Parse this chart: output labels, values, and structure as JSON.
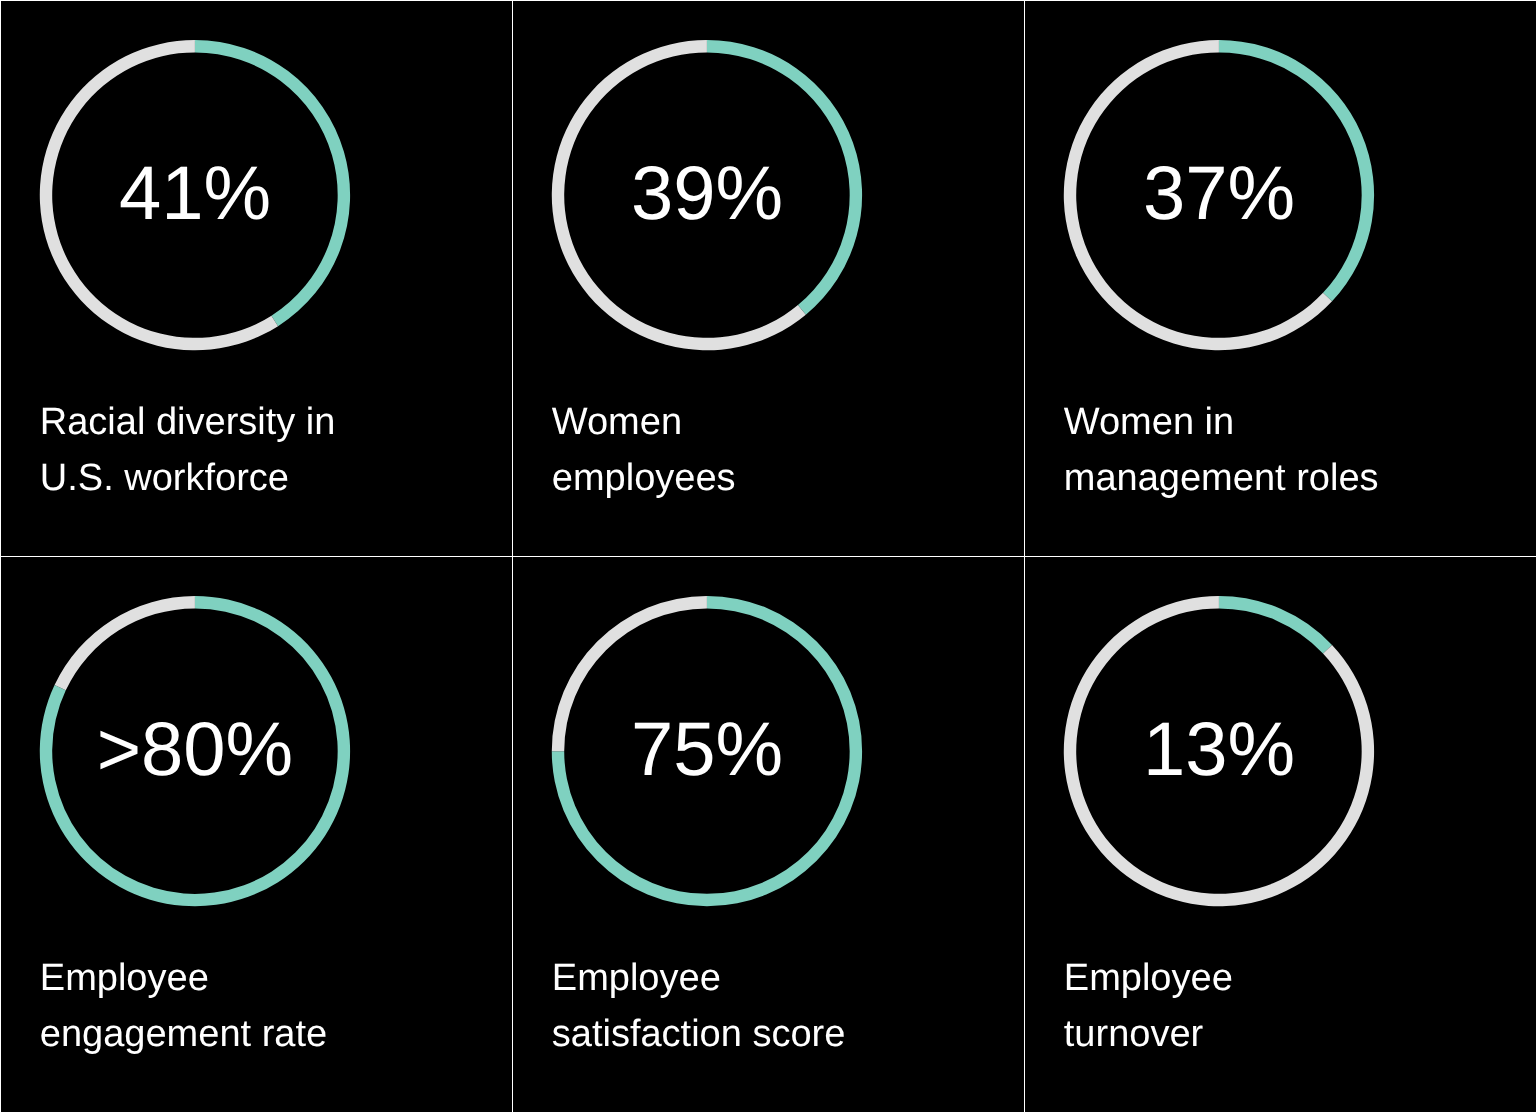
{
  "chart_data": [
    {
      "type": "donut",
      "title": "Racial diversity in\nU.S. workforce",
      "categories": [
        null,
        null
      ],
      "values": [
        41,
        59
      ],
      "colors": [
        "#7fd1c0",
        "#e0e0e0"
      ],
      "annotations": [
        "41%"
      ]
    },
    {
      "type": "donut",
      "title": "Women\nemployees",
      "categories": [
        null,
        null
      ],
      "values": [
        39,
        61
      ],
      "colors": [
        "#7fd1c0",
        "#e0e0e0"
      ],
      "annotations": [
        "39%"
      ]
    },
    {
      "type": "donut",
      "title": "Women in\nmanagement roles",
      "categories": [
        null,
        null
      ],
      "values": [
        37,
        63
      ],
      "colors": [
        "#7fd1c0",
        "#e0e0e0"
      ],
      "annotations": [
        "37%"
      ]
    },
    {
      "type": "donut",
      "title": "Employee\nengagement rate",
      "categories": [
        null,
        null
      ],
      "values": [
        82,
        18
      ],
      "colors": [
        "#7fd1c0",
        "#e0e0e0"
      ],
      "annotations": [
        ">80%"
      ]
    },
    {
      "type": "donut",
      "title": "Employee\nsatisfaction score",
      "categories": [
        null,
        null
      ],
      "values": [
        75,
        25
      ],
      "colors": [
        "#7fd1c0",
        "#e0e0e0"
      ],
      "annotations": [
        "75%"
      ]
    },
    {
      "type": "donut",
      "title": "Employee\nturnover",
      "categories": [
        null,
        null
      ],
      "values": [
        13,
        87
      ],
      "colors": [
        "#7fd1c0",
        "#e0e0e0"
      ],
      "annotations": [
        "13%"
      ]
    }
  ]
}
